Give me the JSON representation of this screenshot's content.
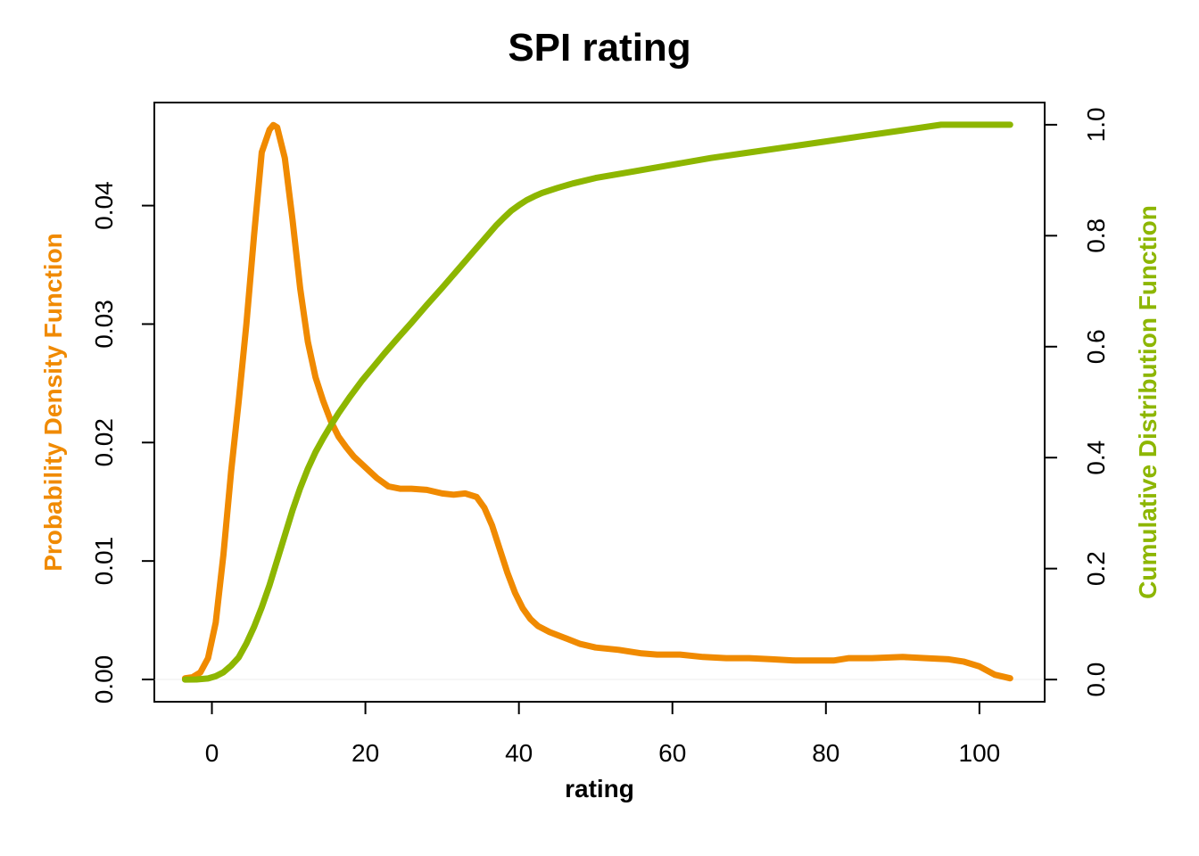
{
  "chart_data": {
    "type": "line",
    "title": "SPI rating",
    "xlabel": "rating",
    "ylabel_left": "Probability Density Function",
    "ylabel_right": "Cumulative Distribution Function",
    "xlim": [
      -7.5,
      108.5
    ],
    "ylim_left": [
      -0.00188,
      0.0487
    ],
    "ylim_right": [
      -0.04,
      1.04
    ],
    "x_ticks": [
      0,
      20,
      40,
      60,
      80,
      100
    ],
    "x_tick_labels": [
      "0",
      "20",
      "40",
      "60",
      "80",
      "100"
    ],
    "y_left_ticks": [
      0,
      0.01,
      0.02,
      0.03,
      0.04
    ],
    "y_left_tick_labels": [
      "0.00",
      "0.01",
      "0.02",
      "0.03",
      "0.04"
    ],
    "y_right_ticks": [
      0,
      0.2,
      0.4,
      0.6,
      0.8,
      1.0
    ],
    "y_right_tick_labels": [
      "0.0",
      "0.2",
      "0.4",
      "0.6",
      "0.8",
      "1.0"
    ],
    "grid": false,
    "colors": {
      "pdf": "#F08A00",
      "cdf": "#8DB600"
    },
    "series": [
      {
        "axis": "left",
        "color": "#F08A00",
        "x": [
          -3.5,
          -2.5,
          -1.5,
          -0.5,
          0.5,
          1.5,
          2.5,
          3.5,
          4.5,
          5.5,
          6.5,
          7.5,
          8.0,
          8.5,
          9.5,
          10.5,
          11.5,
          12.5,
          13.5,
          14.5,
          15.5,
          16.5,
          17.5,
          18.5,
          20.0,
          21.5,
          23.0,
          24.5,
          26.0,
          28.0,
          30.0,
          31.5,
          33.0,
          34.5,
          35.5,
          36.5,
          37.5,
          38.5,
          39.5,
          40.5,
          41.5,
          42.5,
          44.0,
          46.0,
          48.0,
          50.0,
          53.0,
          56.0,
          58.0,
          61.0,
          64.0,
          67.0,
          70.0,
          73.0,
          76.0,
          79.0,
          81.0,
          83.0,
          86.0,
          90.0,
          93.0,
          96.0,
          98.0,
          100.0,
          102.0,
          104.0
        ],
        "y": [
          0.0001,
          0.0002,
          0.0006,
          0.0018,
          0.0048,
          0.0105,
          0.0175,
          0.0235,
          0.03,
          0.0375,
          0.0445,
          0.0464,
          0.0468,
          0.0466,
          0.044,
          0.0388,
          0.033,
          0.0285,
          0.0255,
          0.0235,
          0.0218,
          0.0205,
          0.0196,
          0.0188,
          0.0179,
          0.017,
          0.0163,
          0.0161,
          0.0161,
          0.016,
          0.0157,
          0.0156,
          0.0157,
          0.0154,
          0.0145,
          0.013,
          0.011,
          0.009,
          0.0073,
          0.006,
          0.0051,
          0.0045,
          0.004,
          0.0035,
          0.003,
          0.0027,
          0.0025,
          0.0022,
          0.0021,
          0.0021,
          0.0019,
          0.0018,
          0.0018,
          0.0017,
          0.0016,
          0.0016,
          0.0016,
          0.0018,
          0.0018,
          0.0019,
          0.0018,
          0.0017,
          0.0015,
          0.0011,
          0.0004,
          0.0001
        ]
      },
      {
        "axis": "right",
        "color": "#8DB600",
        "x": [
          -3.5,
          -2.0,
          -0.5,
          0.5,
          1.5,
          2.5,
          3.5,
          4.5,
          5.5,
          6.5,
          7.5,
          8.5,
          9.5,
          10.5,
          11.5,
          12.5,
          13.5,
          14.5,
          15.5,
          16.5,
          18.0,
          19.5,
          21.0,
          22.5,
          24.0,
          26.0,
          28.0,
          30.0,
          32.0,
          34.0,
          36.0,
          37.0,
          38.0,
          39.0,
          40.0,
          41.0,
          42.0,
          43.0,
          45.0,
          47.0,
          50.0,
          55.0,
          60.0,
          65.0,
          70.0,
          75.0,
          80.0,
          85.0,
          90.0,
          95.0,
          97.0,
          99.0,
          101.0,
          104.0
        ],
        "y": [
          0.0,
          0.0002,
          0.002,
          0.006,
          0.013,
          0.025,
          0.04,
          0.065,
          0.095,
          0.13,
          0.17,
          0.215,
          0.26,
          0.305,
          0.345,
          0.38,
          0.41,
          0.435,
          0.458,
          0.48,
          0.51,
          0.538,
          0.563,
          0.588,
          0.612,
          0.643,
          0.675,
          0.706,
          0.738,
          0.77,
          0.802,
          0.818,
          0.832,
          0.845,
          0.855,
          0.864,
          0.871,
          0.877,
          0.886,
          0.894,
          0.904,
          0.916,
          0.928,
          0.94,
          0.95,
          0.96,
          0.97,
          0.98,
          0.99,
          1.0,
          1.0,
          1.0,
          1.0,
          1.0
        ]
      }
    ]
  }
}
